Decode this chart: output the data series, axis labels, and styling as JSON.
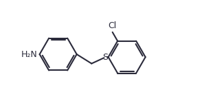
{
  "bg_color": "#ffffff",
  "line_color": "#2b2b3b",
  "line_width": 1.5,
  "font_size_label": 9,
  "h2n_label": "H₂N",
  "cl_label": "Cl",
  "s_label": "S",
  "figsize": [
    3.26,
    1.5
  ],
  "dpi": 100,
  "xlim": [
    0,
    11
  ],
  "ylim": [
    0,
    5.5
  ]
}
